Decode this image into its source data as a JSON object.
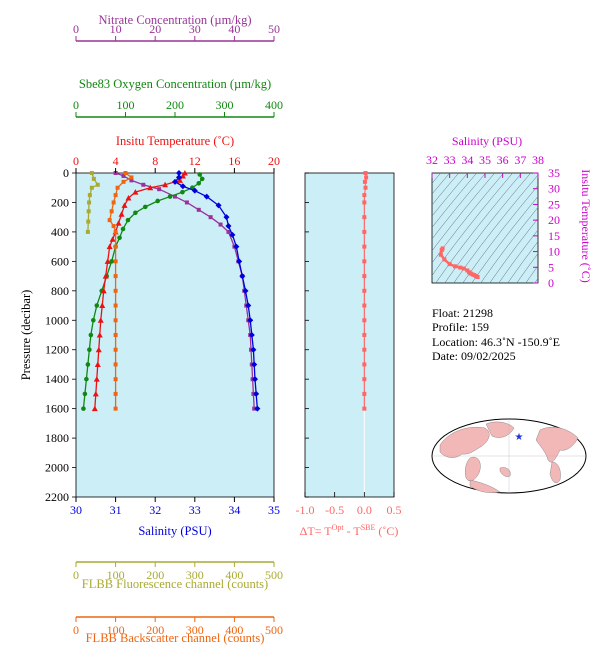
{
  "colors": {
    "nitrate": "#993399",
    "oxygen": "#118811",
    "temperature": "#ee1111",
    "salinity": "#0000dd",
    "fluorescence": "#aaaa33",
    "backscatter": "#ee6611",
    "delta": "#ff6666",
    "panel_bg": "#cceef7",
    "ts_color": "#cc00cc",
    "map_land": "#f2b8b8"
  },
  "chart_data": [
    {
      "type": "line",
      "title": "",
      "ylabel": "Pressure (decibar)",
      "ylim": [
        2200,
        0
      ],
      "yticks": [
        "0",
        "200",
        "400",
        "600",
        "800",
        "1000",
        "1200",
        "1400",
        "1600",
        "1800",
        "2000",
        "2200"
      ],
      "axes": [
        {
          "key": "nitrate",
          "label": "Nitrate Concentration (µm/kg)",
          "range": [
            0,
            50
          ],
          "ticks": [
            "0",
            "10",
            "20",
            "30",
            "40",
            "50"
          ],
          "position": "top-1"
        },
        {
          "key": "oxygen",
          "label": "Sbe83 Oxygen Concentration (µm/kg)",
          "range": [
            0,
            400
          ],
          "ticks": [
            "0",
            "100",
            "200",
            "300",
            "400"
          ],
          "position": "top-2"
        },
        {
          "key": "temperature",
          "label": "Insitu Temperature (˚C)",
          "range": [
            0,
            20
          ],
          "ticks": [
            "0",
            "4",
            "8",
            "12",
            "16",
            "20"
          ],
          "position": "top-3"
        },
        {
          "key": "salinity",
          "label": "Salinity (PSU)",
          "range": [
            30,
            35
          ],
          "ticks": [
            "30",
            "31",
            "32",
            "33",
            "34",
            "35"
          ],
          "position": "bottom-1"
        },
        {
          "key": "fluorescence",
          "label": "FLBB Fluorescence channel (counts)",
          "range": [
            0,
            500
          ],
          "ticks": [
            "0",
            "100",
            "200",
            "300",
            "400",
            "500"
          ],
          "position": "bottom-2"
        },
        {
          "key": "backscatter",
          "label": "FLBB Backscatter channel (counts)",
          "range": [
            0,
            500
          ],
          "ticks": [
            "0",
            "100",
            "200",
            "300",
            "400",
            "500"
          ],
          "position": "bottom-3"
        }
      ],
      "series": [
        {
          "key": "nitrate",
          "marker": "square",
          "points": [
            [
              10,
              0
            ],
            [
              12,
              20
            ],
            [
              14,
              50
            ],
            [
              17,
              80
            ],
            [
              21,
              110
            ],
            [
              25,
              160
            ],
            [
              28,
              200
            ],
            [
              31,
              250
            ],
            [
              34,
              300
            ],
            [
              36.5,
              350
            ],
            [
              38.5,
              400
            ],
            [
              40,
              500
            ],
            [
              41,
              600
            ],
            [
              42,
              700
            ],
            [
              42.5,
              800
            ],
            [
              43,
              900
            ],
            [
              43.5,
              1000
            ],
            [
              44,
              1100
            ],
            [
              44.2,
              1200
            ],
            [
              44.4,
              1300
            ],
            [
              44.6,
              1400
            ],
            [
              44.8,
              1500
            ],
            [
              45,
              1600
            ]
          ]
        },
        {
          "key": "oxygen",
          "marker": "circle",
          "points": [
            [
              250,
              10
            ],
            [
              255,
              40
            ],
            [
              248,
              70
            ],
            [
              235,
              100
            ],
            [
              215,
              130
            ],
            [
              190,
              160
            ],
            [
              165,
              190
            ],
            [
              140,
              230
            ],
            [
              120,
              270
            ],
            [
              105,
              320
            ],
            [
              95,
              380
            ],
            [
              88,
              440
            ],
            [
              80,
              500
            ],
            [
              72,
              600
            ],
            [
              62,
              700
            ],
            [
              52,
              800
            ],
            [
              42,
              900
            ],
            [
              35,
              1000
            ],
            [
              30,
              1100
            ],
            [
              27,
              1200
            ],
            [
              24,
              1300
            ],
            [
              21,
              1400
            ],
            [
              18,
              1500
            ],
            [
              15,
              1600
            ]
          ]
        },
        {
          "key": "temperature",
          "marker": "triangle",
          "points": [
            [
              11,
              0
            ],
            [
              10.8,
              20
            ],
            [
              10.5,
              50
            ],
            [
              9,
              80
            ],
            [
              7.5,
              100
            ],
            [
              6,
              130
            ],
            [
              5.3,
              170
            ],
            [
              4.9,
              220
            ],
            [
              4.6,
              280
            ],
            [
              4.3,
              340
            ],
            [
              4.0,
              400
            ],
            [
              3.7,
              450
            ],
            [
              3.4,
              500
            ],
            [
              3.2,
              600
            ],
            [
              3.0,
              700
            ],
            [
              2.8,
              800
            ],
            [
              2.65,
              900
            ],
            [
              2.5,
              1000
            ],
            [
              2.4,
              1100
            ],
            [
              2.3,
              1200
            ],
            [
              2.2,
              1300
            ],
            [
              2.1,
              1400
            ],
            [
              2.0,
              1500
            ],
            [
              1.9,
              1600
            ]
          ]
        },
        {
          "key": "salinity",
          "marker": "diamond",
          "points": [
            [
              32.6,
              0
            ],
            [
              32.6,
              30
            ],
            [
              32.5,
              60
            ],
            [
              32.7,
              90
            ],
            [
              33.0,
              120
            ],
            [
              33.3,
              160
            ],
            [
              33.6,
              220
            ],
            [
              33.8,
              300
            ],
            [
              33.85,
              360
            ],
            [
              33.95,
              420
            ],
            [
              34.05,
              500
            ],
            [
              34.12,
              600
            ],
            [
              34.2,
              700
            ],
            [
              34.28,
              800
            ],
            [
              34.35,
              900
            ],
            [
              34.4,
              1000
            ],
            [
              34.44,
              1100
            ],
            [
              34.48,
              1200
            ],
            [
              34.5,
              1300
            ],
            [
              34.52,
              1400
            ],
            [
              34.55,
              1500
            ],
            [
              34.58,
              1600
            ]
          ]
        },
        {
          "key": "fluorescence",
          "marker": "square",
          "points": [
            [
              40,
              0
            ],
            [
              45,
              40
            ],
            [
              55,
              80
            ],
            [
              40,
              100
            ],
            [
              35,
              150
            ],
            [
              33,
              200
            ],
            [
              32,
              260
            ],
            [
              31,
              330
            ],
            [
              30,
              400
            ]
          ]
        },
        {
          "key": "backscatter",
          "marker": "square",
          "points": [
            [
              125,
              0
            ],
            [
              140,
              30
            ],
            [
              120,
              60
            ],
            [
              105,
              100
            ],
            [
              100,
              150
            ],
            [
              95,
              200
            ],
            [
              90,
              260
            ],
            [
              85,
              320
            ],
            [
              95,
              360
            ],
            [
              100,
              400
            ],
            [
              100,
              500
            ],
            [
              100,
              600
            ],
            [
              100,
              700
            ],
            [
              100,
              800
            ],
            [
              100,
              900
            ],
            [
              100,
              1000
            ],
            [
              100,
              1100
            ],
            [
              100,
              1200
            ],
            [
              100,
              1300
            ],
            [
              100,
              1400
            ],
            [
              100,
              1500
            ],
            [
              100,
              1600
            ]
          ]
        }
      ]
    },
    {
      "type": "line",
      "xlabel_parts": [
        "ΔT= T",
        "Opt",
        " - T",
        "SBE",
        " (˚C)"
      ],
      "xlim": [
        -1.0,
        0.5
      ],
      "xticks": [
        "-1.0",
        "-0.5",
        "0.0",
        "0.5"
      ],
      "ylim": [
        2200,
        0
      ],
      "series": [
        {
          "key": "delta",
          "marker": "square",
          "points": [
            [
              0.02,
              0
            ],
            [
              0.03,
              30
            ],
            [
              0.01,
              60
            ],
            [
              0.02,
              100
            ],
            [
              0.0,
              150
            ],
            [
              0.0,
              200
            ],
            [
              0.0,
              300
            ],
            [
              0.0,
              400
            ],
            [
              0.0,
              500
            ],
            [
              0.0,
              600
            ],
            [
              0.0,
              700
            ],
            [
              0.0,
              800
            ],
            [
              0.0,
              900
            ],
            [
              0.0,
              1000
            ],
            [
              0.0,
              1100
            ],
            [
              0.0,
              1200
            ],
            [
              0.0,
              1300
            ],
            [
              0.0,
              1400
            ],
            [
              0.0,
              1500
            ],
            [
              0.0,
              1600
            ]
          ]
        }
      ]
    },
    {
      "type": "scatter",
      "title": "Salinity (PSU)",
      "xlim": [
        32,
        38
      ],
      "xticks": [
        "32",
        "33",
        "34",
        "35",
        "36",
        "37",
        "38"
      ],
      "ylabel": "Insitu Temperature (˚C)",
      "ylim": [
        0,
        35
      ],
      "yticks": [
        "0",
        "5",
        "10",
        "15",
        "20",
        "25",
        "30",
        "35"
      ],
      "series": [
        {
          "key": "ts",
          "marker": "square",
          "points": [
            [
              32.6,
              11
            ],
            [
              32.55,
              10.5
            ],
            [
              32.5,
              9
            ],
            [
              32.7,
              7.5
            ],
            [
              33.0,
              6
            ],
            [
              33.3,
              5.3
            ],
            [
              33.6,
              4.9
            ],
            [
              33.8,
              4.6
            ],
            [
              34.0,
              4.0
            ],
            [
              34.1,
              3.4
            ],
            [
              34.2,
              3.0
            ],
            [
              34.3,
              2.7
            ],
            [
              34.4,
              2.5
            ],
            [
              34.5,
              2.2
            ],
            [
              34.58,
              1.9
            ]
          ]
        }
      ]
    }
  ],
  "info": {
    "float": "Float:  21298",
    "profile": "Profile:  159",
    "location_prefix": "Location:  46.3˚N  -150.9˚E",
    "date": "Date:  09/02/2025"
  },
  "map": {
    "marker_label": "float-position-marker"
  }
}
